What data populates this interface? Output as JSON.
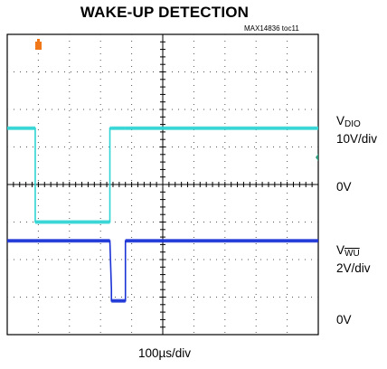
{
  "chart_data": {
    "type": "line",
    "title": "WAKE-UP DETECTION",
    "figure_id": "MAX14836 toc11",
    "xlabel": "100µs/div",
    "time_per_div_us": 100,
    "divisions": {
      "x": 10,
      "y": 8
    },
    "x": [
      0.0,
      0.9,
      0.9,
      3.3,
      3.3,
      3.35,
      3.35,
      3.8,
      3.8,
      10.0
    ],
    "series": [
      {
        "name_prefix": "V",
        "name_sub": "DIO",
        "scale": "10V/div",
        "zero_label": "0V",
        "color": "#2fd4d4",
        "zero_div": 3.0,
        "values": [
          2.5,
          2.5,
          0.0,
          0.0,
          2.5,
          2.5,
          2.5,
          2.5,
          2.5,
          2.5
        ]
      },
      {
        "name_prefix": "V",
        "name_sub": "WU",
        "scale": "2V/div",
        "zero_label": "0V",
        "color": "#1a32d6",
        "zero_div": 0.0,
        "values": [
          2.5,
          2.5,
          2.5,
          2.5,
          2.5,
          1.2,
          0.9,
          0.9,
          2.5,
          2.5
        ]
      }
    ]
  }
}
